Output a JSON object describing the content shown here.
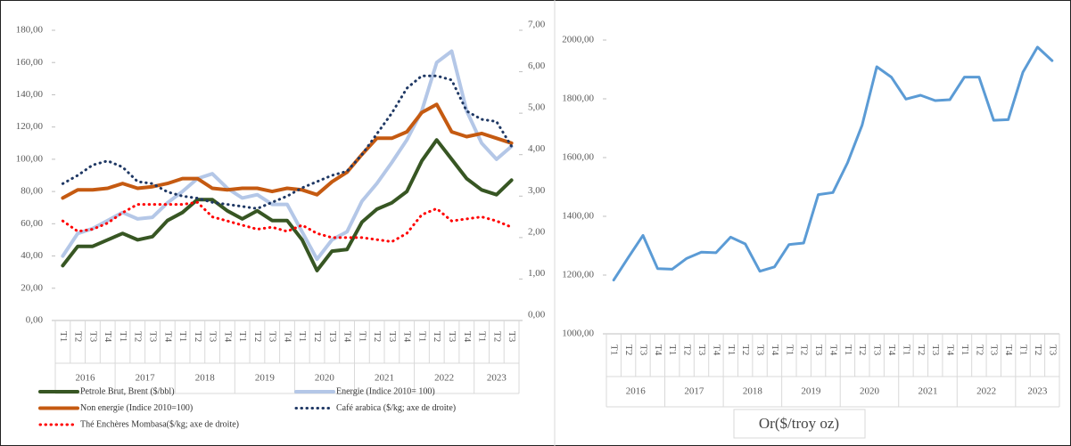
{
  "chart_data": [
    {
      "type": "line",
      "categories": [
        "T1",
        "T2",
        "T3",
        "T4",
        "T1",
        "T2",
        "T3",
        "T4",
        "T1",
        "T2",
        "T3",
        "T4",
        "T1",
        "T2",
        "T3",
        "T4",
        "T1",
        "T2",
        "T3",
        "T4",
        "T1",
        "T2",
        "T3",
        "T4",
        "T1",
        "T2",
        "T3",
        "T4",
        "T1",
        "T2",
        "T3"
      ],
      "years": [
        "2016",
        "2017",
        "2018",
        "2019",
        "2020",
        "2021",
        "2022",
        "2023"
      ],
      "ylim": [
        0,
        180
      ],
      "yticks": [
        {
          "value": 0,
          "label": "0,00"
        },
        {
          "value": 20,
          "label": "20,00"
        },
        {
          "value": 40,
          "label": "40,00"
        },
        {
          "value": 60,
          "label": "60,00"
        },
        {
          "value": 80,
          "label": "80,00"
        },
        {
          "value": 100,
          "label": "100,00"
        },
        {
          "value": 120,
          "label": "120,00"
        },
        {
          "value": 140,
          "label": "140,00"
        },
        {
          "value": 160,
          "label": "160,00"
        },
        {
          "value": 180,
          "label": "180,00"
        }
      ],
      "y2lim": [
        0,
        7
      ],
      "y2ticks": [
        {
          "value": 0,
          "label": "0,00"
        },
        {
          "value": 1,
          "label": "1,00"
        },
        {
          "value": 2,
          "label": "2,00"
        },
        {
          "value": 3,
          "label": "3,00"
        },
        {
          "value": 4,
          "label": "4,00"
        },
        {
          "value": 5,
          "label": "5,00"
        },
        {
          "value": 6,
          "label": "6,00"
        },
        {
          "value": 7,
          "label": "7,00"
        }
      ],
      "series": [
        {
          "name": "Petrole Brut, Brent ($/bbl)",
          "color": "#375623",
          "style": "solid",
          "values": [
            34,
            46,
            46,
            50,
            54,
            50,
            52,
            62,
            67,
            75,
            75,
            68,
            63,
            68,
            62,
            62,
            50,
            31,
            43,
            44,
            61,
            69,
            73,
            80,
            99,
            112,
            100,
            88,
            81,
            78,
            87
          ]
        },
        {
          "name": "Energie (Indice 2010= 100)",
          "color": "#b4c7e7",
          "style": "solid",
          "values": [
            40,
            54,
            57,
            62,
            67,
            63,
            64,
            73,
            80,
            88,
            91,
            82,
            76,
            78,
            72,
            72,
            55,
            38,
            50,
            55,
            74,
            85,
            98,
            112,
            130,
            160,
            167,
            130,
            110,
            100,
            108
          ]
        },
        {
          "name": "Non energie (Indice 2010=100)",
          "color": "#c55a11",
          "style": "solid",
          "values": [
            76,
            81,
            81,
            82,
            85,
            82,
            83,
            85,
            88,
            88,
            82,
            81,
            82,
            82,
            80,
            82,
            81,
            78,
            86,
            92,
            103,
            113,
            113,
            117,
            129,
            134,
            117,
            114,
            116,
            113,
            110
          ]
        },
        {
          "name": "Café arabica ($/kg; axe de droite)",
          "color": "#1f3864",
          "style": "dotted",
          "axis": "y2",
          "values": [
            3.3,
            3.5,
            3.75,
            3.85,
            3.7,
            3.35,
            3.3,
            3.1,
            3.0,
            2.95,
            2.85,
            2.8,
            2.75,
            2.7,
            2.85,
            3.0,
            3.2,
            3.35,
            3.5,
            3.6,
            4.0,
            4.5,
            5.0,
            5.6,
            5.9,
            5.9,
            5.8,
            5.05,
            4.85,
            4.8,
            4.2
          ]
        },
        {
          "name": "Thé Enchères Mombasa($/kg; axe de droite)",
          "color": "#ff0000",
          "style": "dotted",
          "axis": "y2",
          "values": [
            2.4,
            2.15,
            2.2,
            2.35,
            2.6,
            2.8,
            2.8,
            2.8,
            2.8,
            2.85,
            2.5,
            2.4,
            2.3,
            2.2,
            2.25,
            2.15,
            2.3,
            2.1,
            2.0,
            2.0,
            2.0,
            1.95,
            1.9,
            2.1,
            2.55,
            2.7,
            2.4,
            2.45,
            2.5,
            2.4,
            2.25
          ]
        }
      ]
    },
    {
      "type": "line",
      "title": "Or($/troy oz)",
      "color": "#5b9bd5",
      "categories": [
        "T1",
        "T2",
        "T3",
        "T4",
        "T1",
        "T2",
        "T3",
        "T4",
        "T1",
        "T2",
        "T3",
        "T4",
        "T1",
        "T2",
        "T3",
        "T4",
        "T1",
        "T2",
        "T3",
        "T4",
        "T1",
        "T2",
        "T3",
        "T4",
        "T1",
        "T2",
        "T3",
        "T4",
        "T1",
        "T2",
        "T3"
      ],
      "years": [
        "2016",
        "2017",
        "2018",
        "2019",
        "2020",
        "2021",
        "2022",
        "2023"
      ],
      "ylim": [
        1000,
        2000
      ],
      "yticks": [
        {
          "value": 1000,
          "label": "1000,00"
        },
        {
          "value": 1200,
          "label": "1200,00"
        },
        {
          "value": 1400,
          "label": "1400,00"
        },
        {
          "value": 1600,
          "label": "1600,00"
        },
        {
          "value": 1800,
          "label": "1800,00"
        },
        {
          "value": 2000,
          "label": "2000,00"
        }
      ],
      "values": [
        1183,
        1260,
        1335,
        1222,
        1220,
        1257,
        1278,
        1276,
        1329,
        1306,
        1213,
        1228,
        1304,
        1309,
        1474,
        1481,
        1582,
        1711,
        1909,
        1874,
        1799,
        1812,
        1794,
        1797,
        1874,
        1874,
        1727,
        1729,
        1890,
        1976,
        1930
      ]
    }
  ]
}
